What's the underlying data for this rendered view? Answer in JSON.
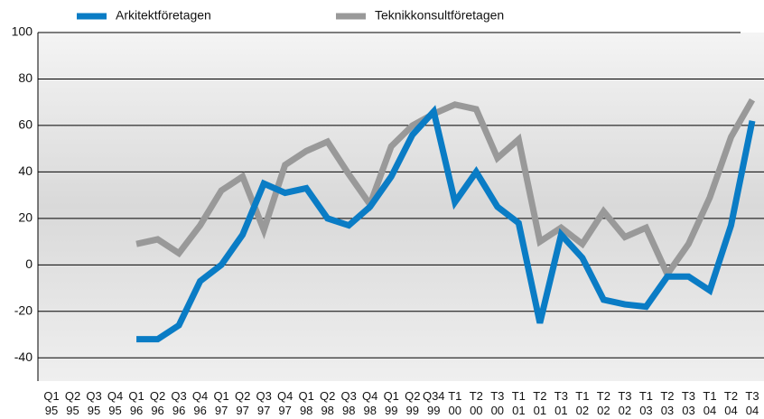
{
  "chart_data": {
    "type": "line",
    "categories": [
      "Q1 95",
      "Q2 95",
      "Q3 95",
      "Q4 95",
      "Q1 96",
      "Q2 96",
      "Q3 96",
      "Q4 96",
      "Q1 97",
      "Q2 97",
      "Q3 97",
      "Q4 97",
      "Q1 98",
      "Q2 98",
      "Q3 98",
      "Q4 98",
      "Q1 99",
      "Q2 99",
      "Q34 99",
      "T1 00",
      "T2 00",
      "T3 00",
      "T1 01",
      "T2 01",
      "T3 01",
      "T1 02",
      "T2 02",
      "T3 02",
      "T1 03",
      "T2 03",
      "T3 03",
      "T1 04",
      "T2 04",
      "T3 04"
    ],
    "series": [
      {
        "name": "Arkitektföretagen",
        "color": "#0a7cc5",
        "values": [
          null,
          null,
          null,
          null,
          -32,
          -32,
          -26,
          -7,
          0,
          13,
          35,
          31,
          33,
          20,
          17,
          25,
          38,
          56,
          66,
          27,
          40,
          25,
          18,
          -25,
          13,
          3,
          -15,
          -17,
          -18,
          -5,
          -5,
          -11,
          17,
          62
        ]
      },
      {
        "name": "Teknikkonsultföretagen",
        "color": "#999999",
        "values": [
          null,
          null,
          null,
          null,
          9,
          11,
          5,
          17,
          32,
          38,
          15,
          43,
          49,
          53,
          39,
          26,
          51,
          60,
          65,
          69,
          67,
          46,
          54,
          10,
          16,
          9,
          23,
          12,
          16,
          -4,
          9,
          29,
          55,
          71
        ]
      }
    ],
    "ylim": [
      -50,
      100
    ],
    "yticks": [
      -40,
      -20,
      0,
      20,
      40,
      60,
      80,
      100
    ],
    "grid": true
  }
}
